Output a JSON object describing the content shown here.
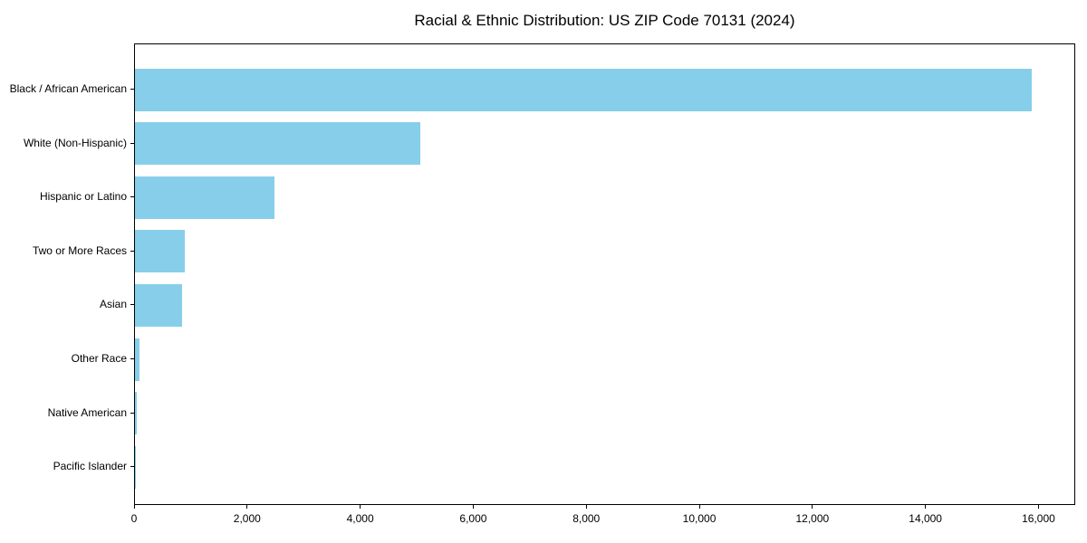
{
  "figure": {
    "background": "#FFFFFF"
  },
  "chart_data": {
    "type": "bar",
    "orientation": "horizontal",
    "title": "Racial & Ethnic Distribution: US ZIP Code 70131 (2024)",
    "categories": [
      "Black / African American",
      "White (Non-Hispanic)",
      "Hispanic or Latino",
      "Two or More Races",
      "Asian",
      "Other Race",
      "Native American",
      "Pacific Islander"
    ],
    "values": [
      15860,
      5040,
      2470,
      885,
      835,
      80,
      25,
      10
    ],
    "xlabel": "",
    "ylabel": "",
    "xlim": [
      0,
      16650
    ],
    "xticks": [
      {
        "value": 0,
        "label": "0"
      },
      {
        "value": 2000,
        "label": "2,000"
      },
      {
        "value": 4000,
        "label": "4,000"
      },
      {
        "value": 6000,
        "label": "6,000"
      },
      {
        "value": 8000,
        "label": "8,000"
      },
      {
        "value": 10000,
        "label": "10,000"
      },
      {
        "value": 12000,
        "label": "12,000"
      },
      {
        "value": 14000,
        "label": "14,000"
      },
      {
        "value": 16000,
        "label": "16,000"
      }
    ],
    "grid": false,
    "legend": "none",
    "colors": {
      "bar": "#87CEEB",
      "axis": "#000000",
      "text": "#000000",
      "background": "#FFFFFF"
    }
  }
}
